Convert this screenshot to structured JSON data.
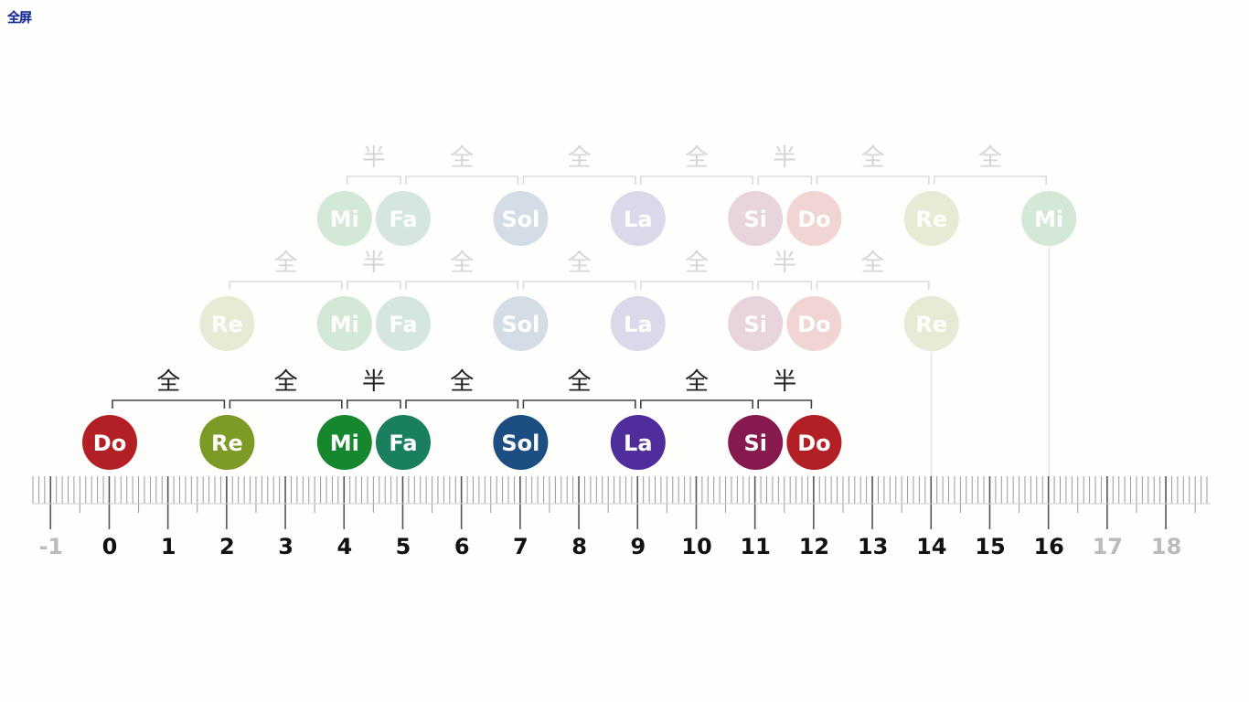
{
  "toolbar": {
    "fullscreen_label": "全屏"
  },
  "scale": {
    "numbers": [
      "-1",
      "0",
      "1",
      "2",
      "3",
      "4",
      "5",
      "6",
      "7",
      "8",
      "9",
      "10",
      "11",
      "12",
      "13",
      "14",
      "15",
      "16",
      "17",
      "18"
    ],
    "active_min": 0,
    "active_max": 16
  },
  "colors": {
    "Do": "#b21f24",
    "Re": "#7b9a26",
    "Mi": "#17872e",
    "Fa": "#1a7f5f",
    "Sol": "#1d4e82",
    "La": "#4f2d9a",
    "Si": "#861a4e",
    "bracket": "#444444",
    "tick_active": "#111111",
    "tick_inactive": "#bbbbbb"
  },
  "rows": [
    {
      "id": "row-do",
      "opacity": 1,
      "notes": [
        {
          "name": "Do",
          "pos": 0
        },
        {
          "name": "Re",
          "pos": 2
        },
        {
          "name": "Mi",
          "pos": 4
        },
        {
          "name": "Fa",
          "pos": 5
        },
        {
          "name": "Sol",
          "pos": 7
        },
        {
          "name": "La",
          "pos": 9
        },
        {
          "name": "Si",
          "pos": 11
        },
        {
          "name": "Do",
          "pos": 12
        }
      ],
      "steps": [
        "全",
        "全",
        "半",
        "全",
        "全",
        "全",
        "半"
      ]
    },
    {
      "id": "row-re",
      "opacity": 0.18,
      "notes": [
        {
          "name": "Re",
          "pos": 2
        },
        {
          "name": "Mi",
          "pos": 4
        },
        {
          "name": "Fa",
          "pos": 5
        },
        {
          "name": "Sol",
          "pos": 7
        },
        {
          "name": "La",
          "pos": 9
        },
        {
          "name": "Si",
          "pos": 11
        },
        {
          "name": "Do",
          "pos": 12
        },
        {
          "name": "Re",
          "pos": 14
        }
      ],
      "steps": [
        "全",
        "半",
        "全",
        "全",
        "全",
        "半",
        "全"
      ]
    },
    {
      "id": "row-mi",
      "opacity": 0.18,
      "notes": [
        {
          "name": "Mi",
          "pos": 4
        },
        {
          "name": "Fa",
          "pos": 5
        },
        {
          "name": "Sol",
          "pos": 7
        },
        {
          "name": "La",
          "pos": 9
        },
        {
          "name": "Si",
          "pos": 11
        },
        {
          "name": "Do",
          "pos": 12
        },
        {
          "name": "Re",
          "pos": 14
        },
        {
          "name": "Mi",
          "pos": 16
        }
      ],
      "steps": [
        "半",
        "全",
        "全",
        "全",
        "半",
        "全",
        "全"
      ]
    }
  ]
}
